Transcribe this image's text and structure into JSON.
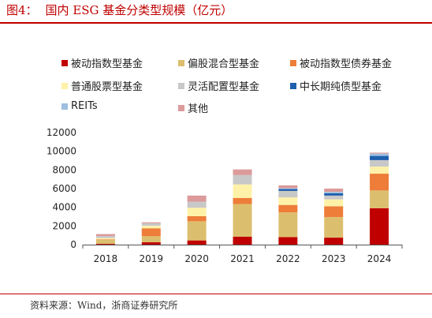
{
  "title": {
    "num": "图4：",
    "text": "国内 ESG 基金分类型规模（亿元）"
  },
  "source": "资料来源：Wind，浙商证券研究所",
  "chart_data": {
    "type": "bar",
    "stacked": true,
    "categories": [
      "2018",
      "2019",
      "2020",
      "2021",
      "2022",
      "2023",
      "2024"
    ],
    "ylim": [
      0,
      12000
    ],
    "yticks": [
      "0",
      "2000",
      "4000",
      "6000",
      "8000",
      "10000",
      "12000"
    ],
    "series": [
      {
        "name": "被动指数型基金",
        "color": "#c00000",
        "values": [
          80,
          250,
          450,
          850,
          800,
          750,
          3900
        ]
      },
      {
        "name": "偏股混合型基金",
        "color": "#dcbf6e",
        "values": [
          450,
          650,
          2050,
          3500,
          2650,
          2200,
          1900
        ]
      },
      {
        "name": "被动指数型债券基金",
        "color": "#ee7d3a",
        "values": [
          50,
          850,
          550,
          650,
          800,
          1150,
          1800
        ]
      },
      {
        "name": "普通股票型基金",
        "color": "#fff2a8",
        "values": [
          120,
          270,
          900,
          1450,
          800,
          750,
          750
        ]
      },
      {
        "name": "灵活配置型基金",
        "color": "#c8c8c8",
        "values": [
          230,
          270,
          650,
          1000,
          700,
          400,
          700
        ]
      },
      {
        "name": "中长期纯债型基金",
        "color": "#1f5fad",
        "values": [
          0,
          0,
          0,
          0,
          200,
          250,
          450
        ]
      },
      {
        "name": "REITs",
        "color": "#9dbfe0",
        "values": [
          0,
          0,
          0,
          0,
          100,
          150,
          250
        ]
      },
      {
        "name": "其他",
        "color": "#dc9a9a",
        "values": [
          200,
          100,
          650,
          600,
          300,
          350,
          100
        ]
      }
    ]
  }
}
